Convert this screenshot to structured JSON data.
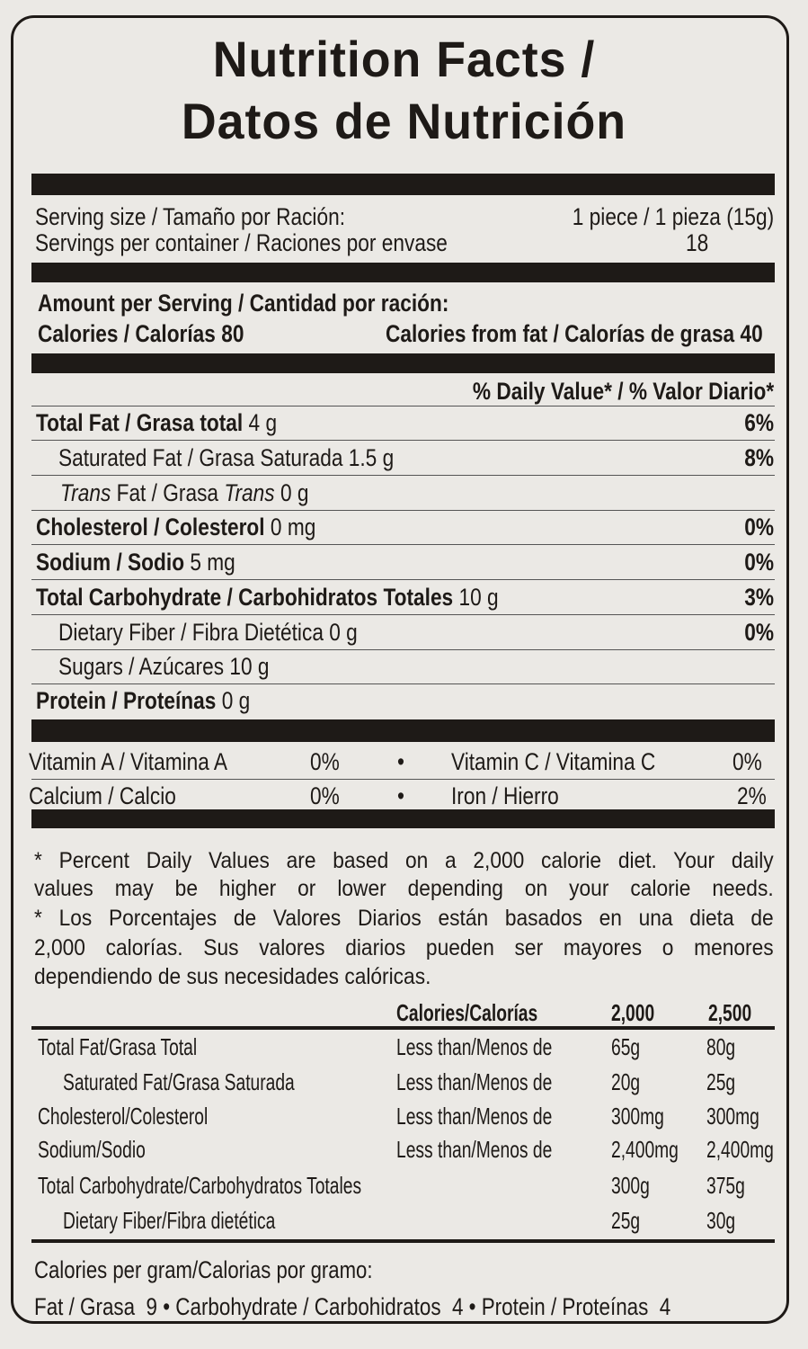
{
  "title": {
    "line1": "Nutrition Facts /",
    "line2": "Datos de Nutrición"
  },
  "serving": {
    "size_label": "Serving size / Tamaño por Ración:",
    "size_value": "1 piece / 1 pieza (15g)",
    "per_container_label": "Servings per container / Raciones por envase",
    "per_container_value": "18"
  },
  "amount": {
    "header": "Amount per Serving / Cantidad por ración:",
    "calories": "Calories / Calorías 80",
    "calories_from_fat": "Calories from fat / Calorías de grasa 40"
  },
  "dv_header": "% Daily Value* / % Valor Diario*",
  "nutrients": [
    {
      "label": "Total Fat / Grasa total",
      "amount": "4 g",
      "dv": "6%"
    },
    {
      "label": "Saturated Fat / Grasa Saturada",
      "amount": "1.5 g",
      "dv": "8%"
    },
    {
      "label_italic1": "Trans",
      "label_mid": " Fat / Grasa ",
      "label_italic2": "Trans",
      "amount": "0 g"
    },
    {
      "label": "Cholesterol / Colesterol",
      "amount": "0 mg",
      "dv": "0%"
    },
    {
      "label": "Sodium / Sodio",
      "amount": "5 mg",
      "dv": "0%"
    },
    {
      "label": "Total Carbohydrate / Carbohidratos Totales",
      "amount": "10 g",
      "dv": "3%"
    },
    {
      "label": "Dietary Fiber / Fibra Dietética",
      "amount": "0 g",
      "dv": "0%"
    },
    {
      "label": "Sugars / Azúcares",
      "amount": "10 g"
    },
    {
      "label": "Protein / Proteínas",
      "amount": "0 g"
    }
  ],
  "vitamins": [
    {
      "label": "Vitamin A / Vitamina A",
      "dv": "0%"
    },
    {
      "label": "Vitamin C / Vitamina C",
      "dv": "0%"
    },
    {
      "label": "Calcium / Calcio",
      "dv": "0%"
    },
    {
      "label": "Iron / Hierro",
      "dv": "2%"
    }
  ],
  "bullet": "•",
  "footnote": [
    "* Percent Daily Values are based on a 2,000 calorie diet. Your daily",
    "values may be higher or lower depending on your calorie needs.",
    "* Los Porcentajes de Valores Diarios están basados en una dieta de",
    "2,000 calorías. Sus valores diarios pueden ser mayores o menores",
    "dependiendo de sus necesidades calóricas."
  ],
  "dv_table": {
    "headers": [
      "Calories/Calorías",
      "2,000",
      "2,500"
    ],
    "rows": [
      {
        "label": "Total Fat/Grasa Total",
        "qualifier": "Less than/Menos de",
        "v2000": "65g",
        "v2500": "80g"
      },
      {
        "label": "Saturated Fat/Grasa Saturada",
        "qualifier": "Less than/Menos de",
        "v2000": "20g",
        "v2500": "25g"
      },
      {
        "label": "Cholesterol/Colesterol",
        "qualifier": "Less than/Menos de",
        "v2000": "300mg",
        "v2500": "300mg"
      },
      {
        "label": "Sodium/Sodio",
        "qualifier": "Less than/Menos de",
        "v2000": "2,400mg",
        "v2500": "2,400mg"
      },
      {
        "label": "Total Carbohydrate/Carbohydratos Totales",
        "qualifier": "",
        "v2000": "300g",
        "v2500": "375g"
      },
      {
        "label": "Dietary Fiber/Fibra dietética",
        "qualifier": "",
        "v2000": "25g",
        "v2500": "30g"
      }
    ]
  },
  "calories_per_gram": {
    "header": "Calories per gram/Calorias por gramo:",
    "line": "Fat / Grasa  9 • Carbohydrate / Carbohidratos  4 • Protein / Proteínas  4"
  }
}
